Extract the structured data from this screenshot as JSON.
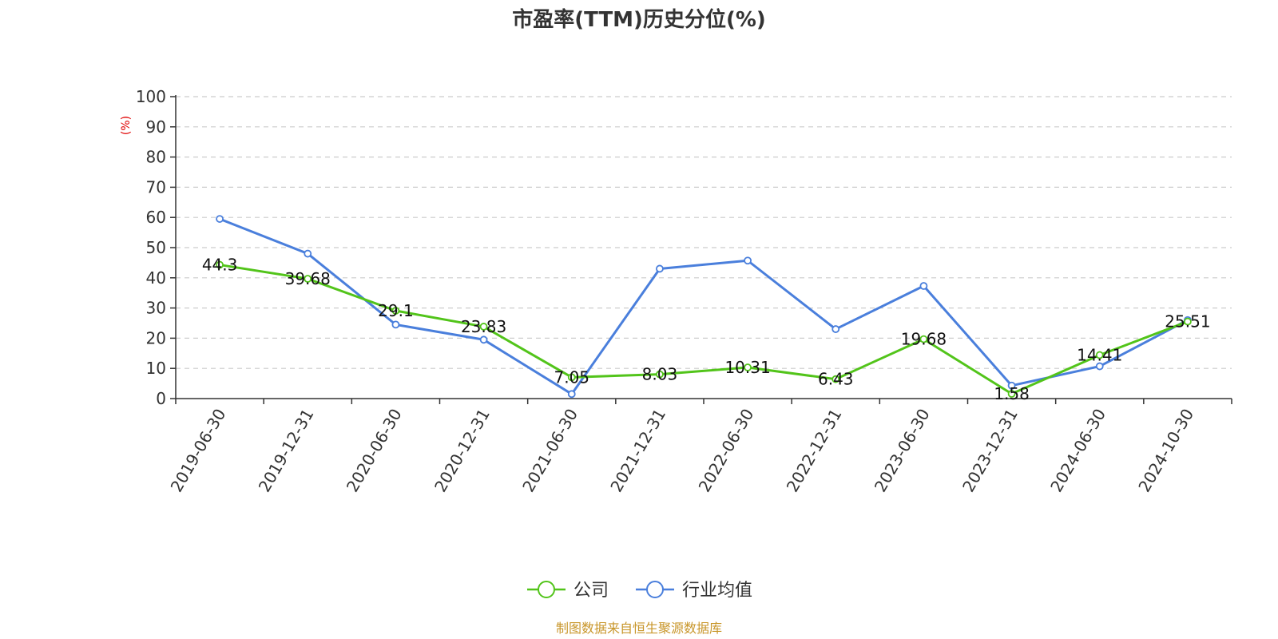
{
  "chart_data": {
    "type": "line",
    "title": "市盈率(TTM)历史分位(%)",
    "ylabel": "(%)",
    "xlabel": "",
    "ylim": [
      0,
      100
    ],
    "yticks": [
      0,
      10,
      20,
      30,
      40,
      50,
      60,
      70,
      80,
      90,
      100
    ],
    "grid": true,
    "legend_position": "bottom-center",
    "categories": [
      "2019-06-30",
      "2019-12-31",
      "2020-06-30",
      "2020-12-31",
      "2021-06-30",
      "2021-12-31",
      "2022-06-30",
      "2022-12-31",
      "2023-06-30",
      "2023-12-31",
      "2024-06-30",
      "2024-10-30"
    ],
    "series": [
      {
        "name": "公司",
        "color": "#52c41a",
        "show_labels": true,
        "values": [
          44.3,
          39.68,
          29.1,
          23.83,
          7.05,
          8.03,
          10.31,
          6.43,
          19.68,
          1.58,
          14.41,
          25.51
        ]
      },
      {
        "name": "行业均值",
        "color": "#4a7fdc",
        "show_labels": false,
        "values": [
          59.5,
          48.0,
          24.5,
          19.5,
          1.5,
          43.0,
          45.7,
          23.0,
          37.3,
          4.3,
          10.7,
          26.0
        ]
      }
    ]
  },
  "source_text": "制图数据来自恒生聚源数据库"
}
